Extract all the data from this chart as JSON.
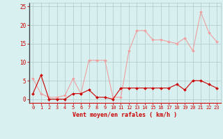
{
  "x": [
    0,
    1,
    2,
    3,
    4,
    5,
    6,
    7,
    8,
    9,
    10,
    11,
    12,
    13,
    14,
    15,
    16,
    17,
    18,
    19,
    20,
    21,
    22,
    23
  ],
  "rafales": [
    5.5,
    1.5,
    0.5,
    0.5,
    1.0,
    5.5,
    1.5,
    10.5,
    10.5,
    10.5,
    0.5,
    0.5,
    13.0,
    18.5,
    18.5,
    16.0,
    16.0,
    15.5,
    15.0,
    16.5,
    13.0,
    23.5,
    18.0,
    15.5
  ],
  "moyen": [
    1.5,
    6.5,
    0.0,
    0.0,
    0.0,
    1.5,
    1.5,
    2.5,
    0.5,
    0.5,
    0.0,
    3.0,
    3.0,
    3.0,
    3.0,
    3.0,
    3.0,
    3.0,
    4.0,
    2.5,
    5.0,
    5.0,
    4.0,
    3.0
  ],
  "rafales_color": "#f0a0a0",
  "moyen_color": "#cc0000",
  "bg_color": "#d8f0f0",
  "grid_color": "#b0c8c8",
  "axis_color": "#cc0000",
  "spine_color": "#808080",
  "xlabel": "Vent moyen/en rafales ( km/h )",
  "ylim": [
    -1,
    26
  ],
  "xlim": [
    -0.5,
    23.5
  ],
  "yticks": [
    0,
    5,
    10,
    15,
    20,
    25
  ],
  "xticks": [
    0,
    1,
    2,
    3,
    4,
    5,
    6,
    7,
    8,
    9,
    10,
    11,
    12,
    13,
    14,
    15,
    16,
    17,
    18,
    19,
    20,
    21,
    22,
    23
  ]
}
